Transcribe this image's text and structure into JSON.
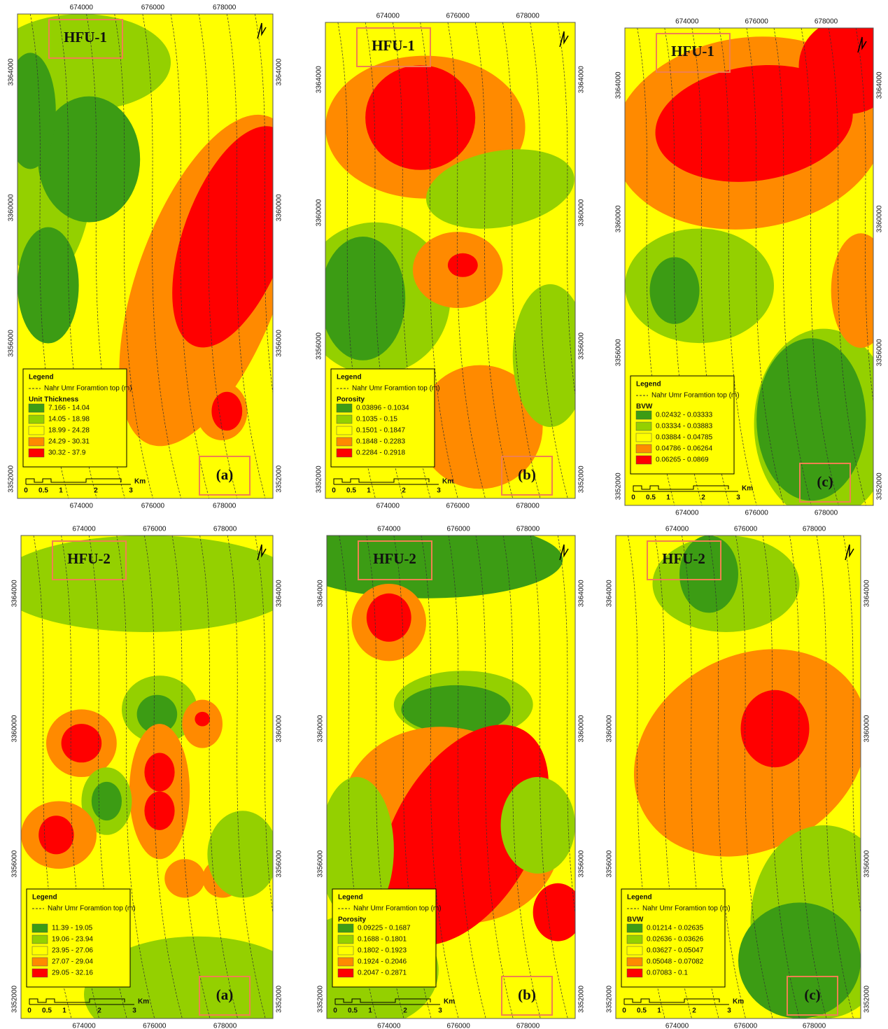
{
  "x_labels": [
    "674000",
    "676000",
    "678000"
  ],
  "y_labels": [
    "3364000",
    "3360000",
    "3356000",
    "3352000"
  ],
  "scale": {
    "labels": [
      "0",
      "0.5",
      "1",
      "2",
      "3"
    ],
    "unit": "Km"
  },
  "class_colors": [
    "#3c9c14",
    "#94d000",
    "#ffff00",
    "#ff8a00",
    "#ff0000"
  ],
  "panels": [
    {
      "unit": "HFU-1",
      "letter": "(a)",
      "legend": {
        "title": "Legend",
        "line": "Nahr Umr Foramtion top (m)",
        "variable": "Unit Thickness",
        "classes": [
          "7.166 - 14.04",
          "14.05 - 18.98",
          "18.99 - 24.28",
          "24.29 - 30.31",
          "30.32 - 37.9"
        ]
      }
    },
    {
      "unit": "HFU-1",
      "letter": "(b)",
      "legend": {
        "title": "Legend",
        "line": "Nahr Umr Foramtion top (m)",
        "variable": "Porosity",
        "classes": [
          "0.03896 - 0.1034",
          "0.1035 - 0.15",
          "0.1501 - 0.1847",
          "0.1848 - 0.2283",
          "0.2284 - 0.2918"
        ]
      }
    },
    {
      "unit": "HFU-1",
      "letter": "(c)",
      "legend": {
        "title": "Legend",
        "line": "Nahr Umr Foramtion top (m)",
        "variable": "BVW",
        "classes": [
          "0.02432 - 0.03333",
          "0.03334 - 0.03883",
          "0.03884 - 0.04785",
          "0.04786 - 0.06264",
          "0.06265 - 0.0869"
        ]
      }
    },
    {
      "unit": "HFU-2",
      "letter": "(a)",
      "legend": {
        "title": "Legend",
        "line": "Nahr Umr Foramtion top (m)",
        "classes": [
          "11.39 - 19.05",
          "19.06 - 23.94",
          "23.95 - 27.06",
          "27.07 - 29.04",
          "29.05 - 32.16"
        ]
      }
    },
    {
      "unit": "HFU-2",
      "letter": "(b)",
      "legend": {
        "title": "Legend",
        "line": "Nahr Umr Foramtion top (m)",
        "variable": "Porosity",
        "classes": [
          "0.09225 - 0.1687",
          "0.1688 - 0.1801",
          "0.1802 - 0.1923",
          "0.1924 - 0.2046",
          "0.2047 - 0.2871"
        ]
      }
    },
    {
      "unit": "HFU-2",
      "letter": "(c)",
      "legend": {
        "title": "Legend",
        "line": "Nahr Umr Foramtion top (m)",
        "variable": "BVW",
        "classes": [
          "0.01214 - 0.02635",
          "0.02636 - 0.03626",
          "0.03627 - 0.05047",
          "0.05048 - 0.07082",
          "0.07083 - 0.1"
        ]
      }
    }
  ]
}
